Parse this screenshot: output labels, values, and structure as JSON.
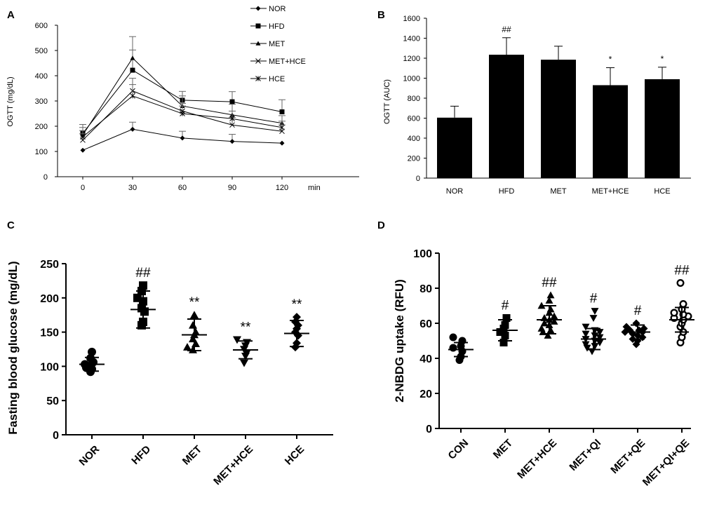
{
  "figure": {
    "panels": [
      "A",
      "B",
      "C",
      "D"
    ]
  },
  "chart_data": [
    {
      "panel": "A",
      "type": "line",
      "title": "",
      "ylabel": "OGTT (mg/dL)",
      "xlabel": "min",
      "x": [
        0,
        30,
        60,
        90,
        120
      ],
      "x_tick_labels": [
        "0",
        "30",
        "60",
        "90",
        "120"
      ],
      "ylim": [
        0,
        600
      ],
      "y_ticks": [
        "0",
        "100",
        "200",
        "300",
        "400",
        "500",
        "600"
      ],
      "legend": "top-right",
      "series": [
        {
          "name": "NOR",
          "marker": "diamond",
          "values": [
            105,
            188,
            153,
            140,
            133
          ],
          "errors": [
            0,
            28,
            27,
            28,
            0
          ]
        },
        {
          "name": "HFD",
          "marker": "square",
          "values": [
            172,
            422,
            303,
            297,
            257
          ],
          "errors": [
            35,
            80,
            35,
            40,
            48
          ]
        },
        {
          "name": "MET",
          "marker": "triangle",
          "values": [
            165,
            470,
            280,
            245,
            212
          ],
          "errors": [
            30,
            85,
            40,
            42,
            30
          ]
        },
        {
          "name": "MET+HCE",
          "marker": "x",
          "values": [
            145,
            340,
            260,
            205,
            180
          ],
          "errors": [
            25,
            50,
            30,
            30,
            25
          ]
        },
        {
          "name": "HCE",
          "marker": "asterisk",
          "values": [
            158,
            320,
            250,
            230,
            195
          ],
          "errors": [
            25,
            45,
            30,
            30,
            25
          ]
        }
      ]
    },
    {
      "panel": "B",
      "type": "bar",
      "title": "",
      "ylabel": "OGTT (AUC)",
      "xlabel": "",
      "categories": [
        "NOR",
        "HFD",
        "MET",
        "MET+HCE",
        "HCE"
      ],
      "values": [
        605,
        1235,
        1185,
        930,
        990
      ],
      "errors": [
        115,
        170,
        135,
        175,
        120
      ],
      "annotations": [
        "",
        "##",
        "",
        "*",
        "*"
      ],
      "ylim": [
        0,
        1600
      ],
      "y_ticks": [
        "0",
        "200",
        "400",
        "600",
        "800",
        "1000",
        "1200",
        "1400",
        "1600"
      ]
    },
    {
      "panel": "C",
      "type": "scatter",
      "title": "",
      "ylabel": "Fasting blood glucose (mg/dL)",
      "xlabel": "",
      "categories": [
        "NOR",
        "HFD",
        "MET",
        "MET+HCE",
        "HCE"
      ],
      "markers": [
        "circle",
        "square",
        "triangle",
        "triangle-down",
        "diamond"
      ],
      "points": [
        [
          92,
          96,
          98,
          101,
          103,
          106,
          112,
          121
        ],
        [
          160,
          165,
          180,
          185,
          195,
          200,
          210,
          218
        ],
        [
          124,
          128,
          133,
          140,
          146,
          150,
          160,
          175
        ],
        [
          105,
          115,
          120,
          125,
          130,
          135,
          139
        ],
        [
          128,
          134,
          145,
          150,
          155,
          160,
          165,
          172
        ]
      ],
      "means": [
        103,
        183,
        146,
        124,
        148
      ],
      "sd": [
        10,
        27,
        23,
        13,
        19
      ],
      "annotations": [
        "",
        "##",
        "**",
        "**",
        "**"
      ],
      "ylim": [
        0,
        250
      ],
      "y_ticks": [
        "0",
        "50",
        "100",
        "150",
        "200",
        "250"
      ]
    },
    {
      "panel": "D",
      "type": "scatter",
      "title": "",
      "ylabel": "2-NBDG uptake (RFU)",
      "xlabel": "",
      "categories": [
        "CON",
        "MET",
        "MET+HCE",
        "MET+QI",
        "MET+QE",
        "MET+QI+QE"
      ],
      "markers": [
        "circle",
        "square",
        "triangle",
        "triangle-down",
        "diamond",
        "open-circle"
      ],
      "points": [
        [
          39,
          41,
          44,
          46,
          47,
          50,
          52
        ],
        [
          49,
          53,
          55,
          57,
          59,
          63
        ],
        [
          53,
          55,
          56,
          57,
          59,
          60,
          61,
          62,
          63,
          64,
          66,
          68,
          70,
          73,
          76
        ],
        [
          44,
          46,
          47,
          48,
          49,
          50,
          51,
          52,
          53,
          54,
          55,
          56,
          58,
          63,
          67
        ],
        [
          48,
          50,
          51,
          52,
          53,
          54,
          55,
          55,
          56,
          56,
          57,
          58,
          60
        ],
        [
          49,
          52,
          55,
          58,
          60,
          62,
          63,
          64,
          65,
          66,
          68,
          71,
          83
        ]
      ],
      "means": [
        45,
        56,
        62,
        51,
        55,
        62
      ],
      "sd": [
        4,
        6,
        8,
        6,
        4,
        7
      ],
      "annotations": [
        "",
        "#",
        "##",
        "#",
        "#",
        "##"
      ],
      "ylim": [
        0,
        100
      ],
      "y_ticks": [
        "0",
        "20",
        "40",
        "60",
        "80",
        "100"
      ]
    }
  ]
}
